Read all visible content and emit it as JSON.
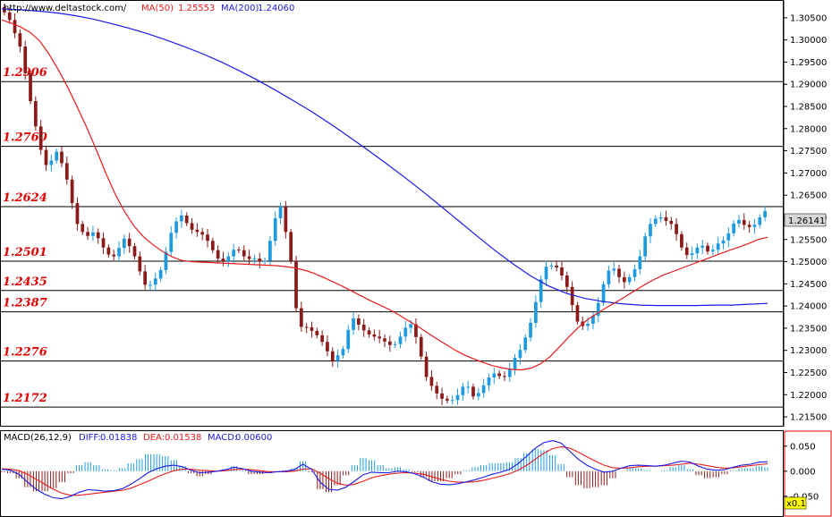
{
  "header": {
    "url": "http://www.deltastock.com/",
    "ma50_label": "MA(50)",
    "ma50_value": "1.25553",
    "ma200_label": "MA(200)",
    "ma200_value": "1.24060"
  },
  "colors": {
    "up": "#1e9be0",
    "down": "#8b1a1a",
    "ma50": "#e81c1c",
    "ma200": "#1a1ae6",
    "level": "#000000",
    "level_text": "#e00000",
    "macd_frame": "#e00000"
  },
  "chart_data": {
    "type": "candlestick",
    "y_range": [
      1.213,
      1.309
    ],
    "y_ticks": [
      "1.30500",
      "1.30000",
      "1.29500",
      "1.29000",
      "1.28500",
      "1.28000",
      "1.27500",
      "1.27000",
      "1.26500",
      "1.26000",
      "1.25500",
      "1.25000",
      "1.24500",
      "1.24000",
      "1.23500",
      "1.23000",
      "1.22500",
      "1.22000",
      "1.21500"
    ],
    "last_price": "1.26141",
    "levels": [
      "1.2906",
      "1.2760",
      "1.2624",
      "1.2501",
      "1.2435",
      "1.2387",
      "1.2276",
      "1.2172"
    ],
    "closes": [
      1.3062,
      1.3045,
      1.3015,
      1.2985,
      1.2925,
      1.2862,
      1.2805,
      1.2752,
      1.2718,
      1.2728,
      1.2748,
      1.2722,
      1.2685,
      1.2632,
      1.2585,
      1.2567,
      1.2558,
      1.2566,
      1.2553,
      1.2532,
      1.2516,
      1.2512,
      1.2531,
      1.2552,
      1.2535,
      1.2512,
      1.2478,
      1.2448,
      1.2448,
      1.2462,
      1.2481,
      1.2522,
      1.2565,
      1.2591,
      1.2604,
      1.2587,
      1.2572,
      1.2567,
      1.2561,
      1.2547,
      1.2526,
      1.2507,
      1.2501,
      1.2512,
      1.2527,
      1.2526,
      1.2512,
      1.2506,
      1.2507,
      1.25,
      1.2502,
      1.2547,
      1.2598,
      1.2624,
      1.2567,
      1.2502,
      1.2395,
      1.2353,
      1.2352,
      1.2344,
      1.2334,
      1.2319,
      1.2298,
      1.2276,
      1.2289,
      1.2303,
      1.2346,
      1.2372,
      1.2358,
      1.2345,
      1.2336,
      1.2331,
      1.2327,
      1.232,
      1.2312,
      1.2314,
      1.2331,
      1.2351,
      1.2359,
      1.233,
      1.2286,
      1.224,
      1.222,
      1.2203,
      1.2191,
      1.2187,
      1.2188,
      1.2199,
      1.2218,
      1.2218,
      1.2196,
      1.2204,
      1.2221,
      1.2239,
      1.2248,
      1.2242,
      1.224,
      1.2257,
      1.2283,
      1.2301,
      1.2329,
      1.2362,
      1.2409,
      1.246,
      1.2489,
      1.2491,
      1.2487,
      1.2469,
      1.2443,
      1.2402,
      1.2365,
      1.2355,
      1.236,
      1.2378,
      1.2407,
      1.2449,
      1.248,
      1.2484,
      1.2465,
      1.2454,
      1.2465,
      1.2483,
      1.2512,
      1.2557,
      1.2585,
      1.2597,
      1.26,
      1.2592,
      1.2585,
      1.2562,
      1.2532,
      1.2515,
      1.2519,
      1.2532,
      1.2536,
      1.2523,
      1.2527,
      1.2541,
      1.2548,
      1.2564,
      1.2586,
      1.2594,
      1.2583,
      1.2578,
      1.2583,
      1.26,
      1.2614
    ],
    "ma50": [
      1.3045,
      1.3038,
      1.3029,
      1.3017,
      1.2998,
      1.2968,
      1.2932,
      1.2892,
      1.2848,
      1.2802,
      1.2752,
      1.27,
      1.2652,
      1.2612,
      1.258,
      1.2556,
      1.2538,
      1.2523,
      1.2511,
      1.2503,
      1.25,
      1.2499,
      1.2498,
      1.2497,
      1.2496,
      1.2495,
      1.2494,
      1.2493,
      1.2492,
      1.2491,
      1.2489,
      1.2486,
      1.2481,
      1.2474,
      1.2465,
      1.2455,
      1.2445,
      1.2434,
      1.2423,
      1.2412,
      1.2402,
      1.2392,
      1.238,
      1.2367,
      1.2354,
      1.234,
      1.2326,
      1.2313,
      1.23,
      1.2289,
      1.228,
      1.2272,
      1.2265,
      1.226,
      1.2257,
      1.2256,
      1.226,
      1.227,
      1.2286,
      1.2308,
      1.2331,
      1.2352,
      1.237,
      1.2384,
      1.2397,
      1.2409,
      1.2422,
      1.2435,
      1.2448,
      1.246,
      1.247,
      1.2478,
      1.2486,
      1.2494,
      1.2502,
      1.251,
      1.2518,
      1.2526,
      1.2533,
      1.2541,
      1.255,
      1.2555
    ],
    "ma200": [
      1.307,
      1.3068,
      1.3065,
      1.3061,
      1.3055,
      1.3047,
      1.3037,
      1.3026,
      1.3014,
      1.3,
      1.2985,
      1.2969,
      1.2951,
      1.2931,
      1.291,
      1.2887,
      1.2863,
      1.2838,
      1.2811,
      1.2783,
      1.2754,
      1.2724,
      1.2693,
      1.2661,
      1.2628,
      1.2594,
      1.256,
      1.2527,
      1.2496,
      1.2468,
      1.2445,
      1.2428,
      1.2417,
      1.241,
      1.2405,
      1.2402,
      1.2401,
      1.2401,
      1.2401,
      1.2402,
      1.2402,
      1.2404,
      1.2406
    ],
    "macd_title": "MACD(26,12,9)",
    "macd_diff_label": "DIFF:",
    "macd_diff_value": "0.01838",
    "macd_dea_label": "DEA:",
    "macd_dea_value": "0.01538",
    "macd_macd_label": "MACD:",
    "macd_macd_value": "0.00600",
    "macd_range": [
      -0.07,
      0.08
    ],
    "macd_ticks": [
      "0.050",
      "0.000",
      "-0.050"
    ],
    "macd_scale_label": "x0.1",
    "diff": [
      0.004,
      0.002,
      -0.006,
      -0.022,
      -0.036,
      -0.046,
      -0.053,
      -0.055,
      -0.05,
      -0.042,
      -0.037,
      -0.038,
      -0.04,
      -0.039,
      -0.035,
      -0.026,
      -0.015,
      -0.003,
      0.005,
      0.01,
      0.012,
      0.009,
      0.002,
      -0.003,
      -0.002,
      0.0,
      0.003,
      0.008,
      0.005,
      0.0,
      -0.002,
      -0.003,
      -0.001,
      0.0,
      0.003,
      0.014,
      0.004,
      -0.022,
      -0.036,
      -0.038,
      -0.032,
      -0.02,
      -0.007,
      -0.002,
      -0.003,
      -0.003,
      0.0,
      -0.001,
      -0.005,
      -0.012,
      -0.021,
      -0.026,
      -0.027,
      -0.025,
      -0.021,
      -0.017,
      -0.012,
      -0.006,
      -0.002,
      0.004,
      0.015,
      0.03,
      0.046,
      0.057,
      0.061,
      0.056,
      0.04,
      0.024,
      0.012,
      0.004,
      -0.002,
      0.0,
      0.006,
      0.011,
      0.012,
      0.011,
      0.01,
      0.012,
      0.016,
      0.02,
      0.018,
      0.01,
      0.004,
      0.002,
      0.003,
      0.008,
      0.012,
      0.014,
      0.018,
      0.019
    ],
    "dea": [
      0.005,
      0.004,
      0.001,
      -0.006,
      -0.016,
      -0.026,
      -0.036,
      -0.044,
      -0.048,
      -0.048,
      -0.046,
      -0.044,
      -0.042,
      -0.04,
      -0.038,
      -0.034,
      -0.027,
      -0.02,
      -0.012,
      -0.005,
      0.001,
      0.004,
      0.004,
      0.002,
      0.001,
      0.0,
      0.001,
      0.003,
      0.004,
      0.003,
      0.001,
      -0.001,
      -0.001,
      -0.001,
      0.0,
      0.004,
      0.005,
      -0.004,
      -0.015,
      -0.024,
      -0.028,
      -0.026,
      -0.02,
      -0.013,
      -0.009,
      -0.006,
      -0.004,
      -0.003,
      -0.004,
      -0.006,
      -0.011,
      -0.016,
      -0.02,
      -0.022,
      -0.022,
      -0.021,
      -0.018,
      -0.014,
      -0.01,
      -0.005,
      0.002,
      0.012,
      0.024,
      0.036,
      0.045,
      0.049,
      0.046,
      0.038,
      0.029,
      0.02,
      0.012,
      0.007,
      0.006,
      0.007,
      0.009,
      0.01,
      0.01,
      0.011,
      0.012,
      0.014,
      0.016,
      0.014,
      0.011,
      0.008,
      0.006,
      0.007,
      0.009,
      0.011,
      0.013,
      0.015
    ]
  }
}
